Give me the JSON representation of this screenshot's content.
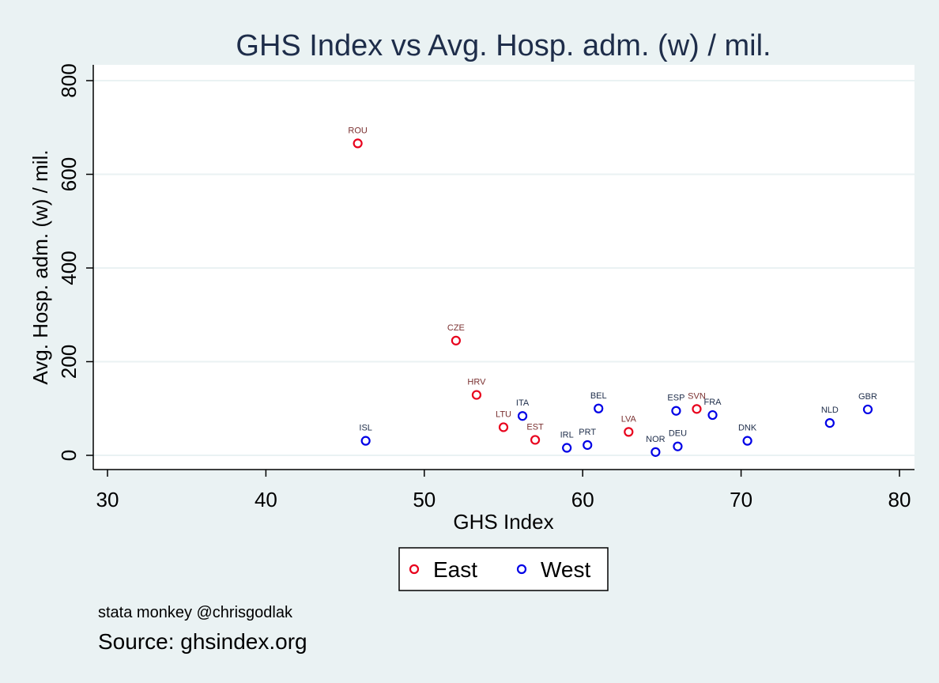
{
  "chart_data": {
    "type": "scatter",
    "title": "GHS Index vs Avg. Hosp. adm. (w) / mil.",
    "xlabel": "GHS Index",
    "ylabel": "Avg. Hosp. adm. (w) / mil.",
    "xlim": [
      30,
      80
    ],
    "ylim": [
      0,
      800
    ],
    "xticks": [
      30,
      40,
      50,
      60,
      70,
      80
    ],
    "yticks": [
      0,
      200,
      400,
      600,
      800
    ],
    "grid": "horizontal",
    "legend_position": "bottom",
    "series": [
      {
        "name": "East",
        "color": "#e8001c",
        "label_color": "#7a3030",
        "points": [
          {
            "label": "ROU",
            "x": 45.8,
            "y": 666
          },
          {
            "label": "CZE",
            "x": 52.0,
            "y": 245
          },
          {
            "label": "HRV",
            "x": 53.3,
            "y": 129
          },
          {
            "label": "LTU",
            "x": 55.0,
            "y": 60
          },
          {
            "label": "EST",
            "x": 57.0,
            "y": 33
          },
          {
            "label": "LVA",
            "x": 62.9,
            "y": 50
          },
          {
            "label": "SVN",
            "x": 67.2,
            "y": 99
          }
        ]
      },
      {
        "name": "West",
        "color": "#0000e6",
        "label_color": "#1e2d4a",
        "points": [
          {
            "label": "ISL",
            "x": 46.3,
            "y": 31
          },
          {
            "label": "ITA",
            "x": 56.2,
            "y": 84
          },
          {
            "label": "IRL",
            "x": 59.0,
            "y": 16
          },
          {
            "label": "PRT",
            "x": 60.3,
            "y": 22
          },
          {
            "label": "BEL",
            "x": 61.0,
            "y": 100
          },
          {
            "label": "NOR",
            "x": 64.6,
            "y": 7
          },
          {
            "label": "ESP",
            "x": 65.9,
            "y": 95
          },
          {
            "label": "DEU",
            "x": 66.0,
            "y": 19
          },
          {
            "label": "FRA",
            "x": 68.2,
            "y": 86
          },
          {
            "label": "DNK",
            "x": 70.4,
            "y": 31
          },
          {
            "label": "NLD",
            "x": 75.6,
            "y": 69
          },
          {
            "label": "GBR",
            "x": 78.0,
            "y": 98
          }
        ]
      }
    ]
  },
  "notes": {
    "line1": "stata monkey @chrisgodlak",
    "line2": "Source: ghsindex.org"
  }
}
